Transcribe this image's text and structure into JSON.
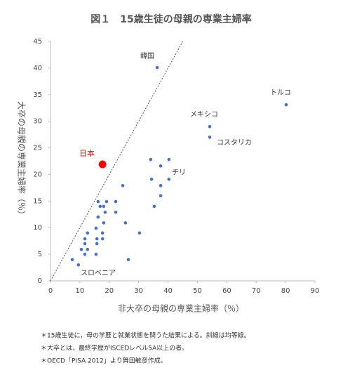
{
  "chart_data": {
    "type": "scatter",
    "title": "図１　15歳生徒の母親の専業主婦率",
    "x_label": "非大卒の母親の専業主婦率（％）",
    "y_label": "大卒の母親の専業主婦率（％）",
    "xlim": [
      0,
      90
    ],
    "xticks": [
      0,
      10,
      20,
      30,
      40,
      50,
      60,
      70,
      80,
      90
    ],
    "ylim": [
      0,
      45
    ],
    "yticks": [
      0,
      5,
      10,
      15,
      20,
      25,
      30,
      35,
      40,
      45
    ],
    "grid": false,
    "series": [
      {
        "color": "#4472c4",
        "x": [
          36.3,
          80.2,
          54.2,
          54.2,
          40.3,
          34.1,
          37.5,
          34.4,
          40.3,
          37.5,
          37.5,
          35.3,
          24.6,
          16.2,
          19.1,
          22.2,
          16.9,
          18.1,
          18.6,
          22.2,
          16.2,
          18.1,
          25.5,
          15.5,
          12.6,
          17.7,
          30.3,
          11.7,
          15.8,
          17.7,
          11.7,
          15.8,
          10.5,
          12.6,
          15.5,
          11.7,
          7.4,
          26.5,
          9.5
        ],
        "values": [
          40.1,
          33.1,
          29.0,
          27.0,
          22.8,
          22.8,
          21.6,
          19.1,
          19.1,
          17.9,
          16.0,
          14.0,
          17.9,
          14.9,
          14.9,
          14.9,
          14.0,
          14.0,
          12.9,
          12.9,
          12.0,
          10.9,
          10.9,
          9.9,
          9.0,
          9.0,
          9.0,
          7.9,
          7.9,
          7.9,
          7.0,
          7.0,
          5.9,
          5.9,
          5.0,
          5.0,
          4.0,
          4.0,
          3.0
        ]
      },
      {
        "color": "#ff0000",
        "x": [
          17.7
        ],
        "values": [
          21.9
        ]
      }
    ],
    "annotations": [
      "韓国",
      "トルコ",
      "メキシコ",
      "コスタリカ",
      "日本",
      "チリ",
      "スロベニア"
    ],
    "notes": [
      "＊15歳生徒に，母の学歴と就業状態を問うた結果による。斜線は均等線。",
      "＊大卒とは，最終学歴がISCEDレベル5A以上の者。",
      "＊OECD「PISA 2012」より舞田敏彦作成。"
    ]
  }
}
